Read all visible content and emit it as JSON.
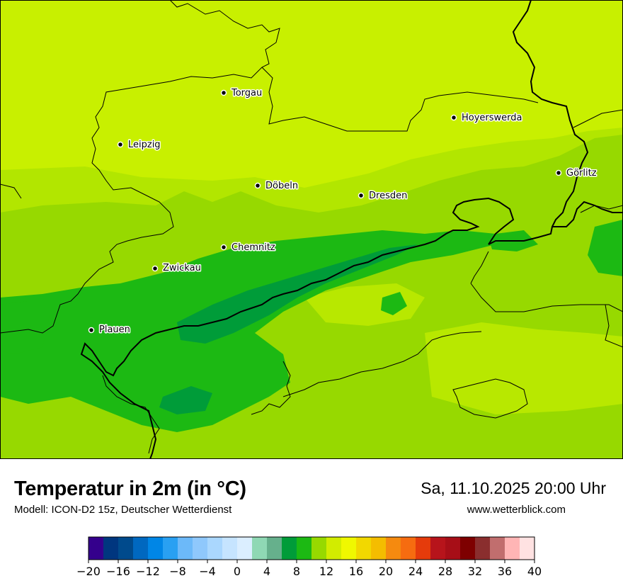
{
  "title": "Temperatur in 2m (in °C)",
  "model": "Modell: ICON-D2 15z, Deutscher Wetterdienst",
  "datetime": "Sa, 11.10.2025 20:00 Uhr",
  "website": "www.wetterblick.com",
  "cities": [
    "Torgau",
    "Hoyerswerda",
    "Leipzig",
    "Görlitz",
    "Döbeln",
    "Dresden",
    "Chemnitz",
    "Zwickau",
    "Plauen"
  ],
  "colorbar": {
    "min": -20,
    "max": 40,
    "step": 2,
    "colors": [
      "#34008c",
      "#00367f",
      "#004a8c",
      "#0068c0",
      "#0086e6",
      "#29a0f2",
      "#6cb9f9",
      "#8fc8fc",
      "#aad7fe",
      "#c6e4ff",
      "#dbeeff",
      "#8fd8b4",
      "#66b08c",
      "#009c39",
      "#1cb913",
      "#97d900",
      "#d2ec00",
      "#f0f800",
      "#f2d800",
      "#f4bd00",
      "#f58a0f",
      "#f66c10",
      "#e53b0b",
      "#b7141b",
      "#a70e17",
      "#7e0000",
      "#8a2e2e",
      "#c16e6e",
      "#ffb5b5",
      "#ffe2e2"
    ],
    "tick_labels": [
      "−20",
      "−16",
      "−12",
      "−8",
      "−4",
      "0",
      "4",
      "8",
      "12",
      "16",
      "20",
      "24",
      "28",
      "32",
      "36",
      "40"
    ]
  },
  "colors": {
    "field_warm_low": "#c8f000",
    "field_mid": "#b0e600",
    "field_10": "#97d900",
    "field_8": "#1cb913",
    "field_6": "#009c39"
  }
}
